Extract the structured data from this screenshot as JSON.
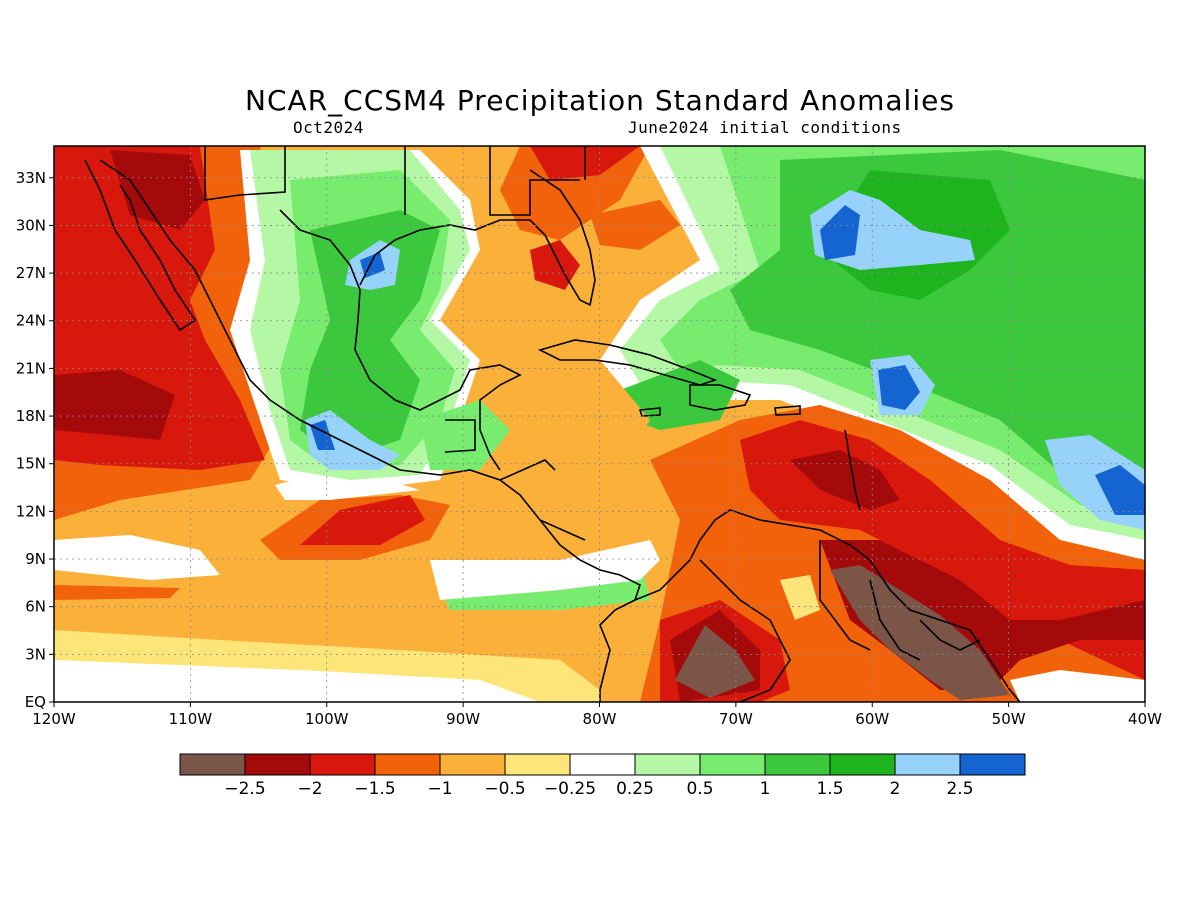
{
  "title": "NCAR_CCSM4 Precipitation Standard Anomalies",
  "subtitle_left": "Oct2024",
  "subtitle_right": "June2024 initial conditions",
  "map": {
    "lon_range": [
      -120,
      -40
    ],
    "lat_range": [
      0,
      35
    ],
    "x_ticks": [
      {
        "value": -120,
        "label": "120W"
      },
      {
        "value": -110,
        "label": "110W"
      },
      {
        "value": -100,
        "label": "100W"
      },
      {
        "value": -90,
        "label": "90W"
      },
      {
        "value": -80,
        "label": "80W"
      },
      {
        "value": -70,
        "label": "70W"
      },
      {
        "value": -60,
        "label": "60W"
      },
      {
        "value": -50,
        "label": "50W"
      },
      {
        "value": -40,
        "label": "40W"
      }
    ],
    "y_ticks": [
      {
        "value": 0,
        "label": "EQ"
      },
      {
        "value": 3,
        "label": "3N"
      },
      {
        "value": 6,
        "label": "6N"
      },
      {
        "value": 9,
        "label": "9N"
      },
      {
        "value": 12,
        "label": "12N"
      },
      {
        "value": 15,
        "label": "15N"
      },
      {
        "value": 18,
        "label": "18N"
      },
      {
        "value": 21,
        "label": "21N"
      },
      {
        "value": 24,
        "label": "24N"
      },
      {
        "value": 27,
        "label": "27N"
      },
      {
        "value": 30,
        "label": "30N"
      },
      {
        "value": 33,
        "label": "33N"
      }
    ],
    "grid": true
  },
  "colorbar": {
    "colors": [
      "#7a5548",
      "#a50a0a",
      "#d8180c",
      "#f2620a",
      "#fbb03a",
      "#fde57a",
      "#ffffff",
      "#b4f7a4",
      "#78ec6e",
      "#3cc83c",
      "#1eb41e",
      "#96d2fa",
      "#1464d2"
    ],
    "labels": [
      "−2.5",
      "−2",
      "−1.5",
      "−1",
      "−0.5",
      "−0.25",
      "0.25",
      "0.5",
      "1",
      "1.5",
      "2",
      "2.5"
    ]
  }
}
